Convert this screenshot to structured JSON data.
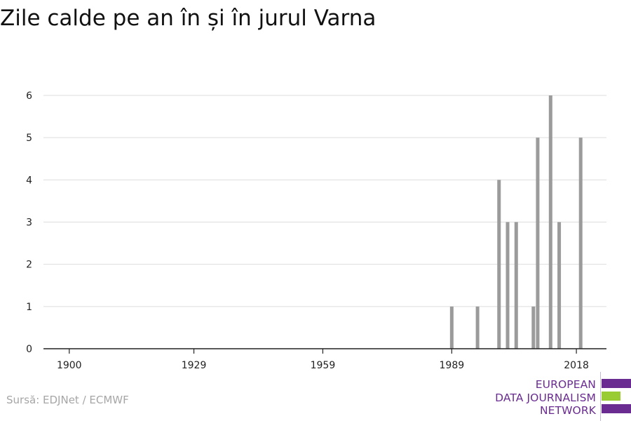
{
  "header": {
    "title": "Zile calde pe an în și în jurul Varna"
  },
  "footer": {
    "source": "Sursă: EDJNet / ECMWF"
  },
  "logo": {
    "lines": [
      "EUROPEAN",
      "DATA JOURNALISM",
      "NETWORK"
    ],
    "colors": {
      "text": "#6a2c91",
      "bar_purple": "#6a2c91",
      "bar_green": "#99cc33"
    }
  },
  "chart_data": {
    "type": "bar",
    "title": "Zile calde pe an în și în jurul Varna",
    "xlabel": "",
    "ylabel": "",
    "xlim": [
      1894,
      2025
    ],
    "ylim": [
      0,
      6
    ],
    "x_ticks": [
      1900,
      1929,
      1959,
      1989,
      2018
    ],
    "y_ticks": [
      0,
      1,
      2,
      3,
      4,
      5,
      6
    ],
    "grid": true,
    "bar_color": "#9b9b9b",
    "x": [
      1989,
      1995,
      2000,
      2002,
      2004,
      2008,
      2009,
      2012,
      2014,
      2019
    ],
    "values": [
      1,
      1,
      4,
      3,
      3,
      1,
      5,
      6,
      3,
      5
    ]
  }
}
